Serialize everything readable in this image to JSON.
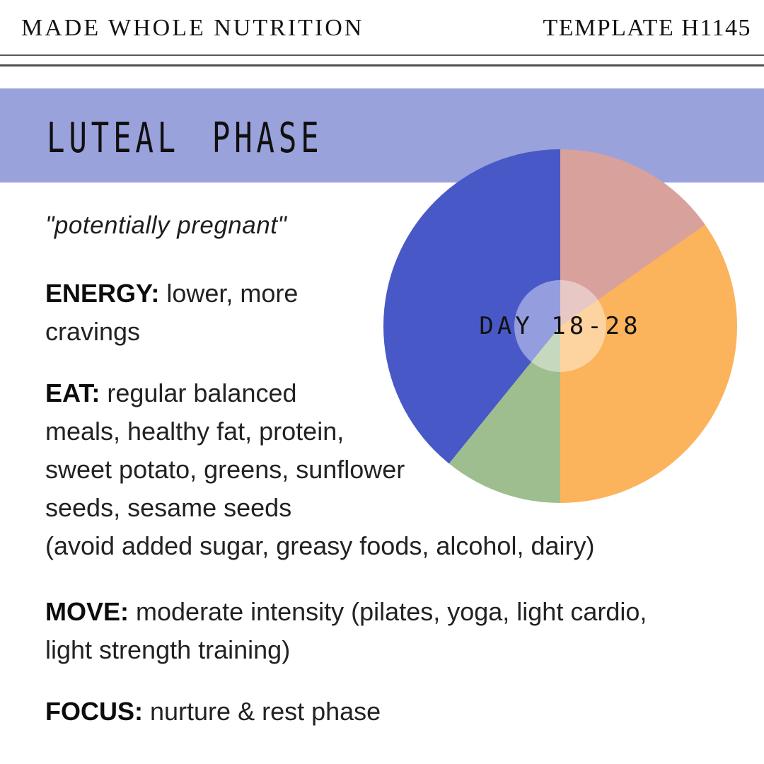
{
  "header": {
    "brand": "MADE WHOLE NUTRITION",
    "template_code": "TEMPLATE H1145"
  },
  "banner": {
    "title": "LUTEAL PHASE",
    "color": "#9aa2dc"
  },
  "chart_data": {
    "type": "pie",
    "title": "menstrual cycle phases pie",
    "center_label": "DAY 18-28",
    "total_days": 28,
    "legend": "none",
    "center_overlay_color": "rgba(255,255,255,0.42)",
    "segments": [
      {
        "label": "rose",
        "color": "#d8a19c",
        "start_deg": 0,
        "end_deg": 55,
        "days": 4.3
      },
      {
        "label": "orange",
        "color": "#fbb35c",
        "start_deg": 55,
        "end_deg": 180,
        "days": 9.7
      },
      {
        "label": "green",
        "color": "#9ebe8f",
        "start_deg": 180,
        "end_deg": 219,
        "days": 3.0
      },
      {
        "label": "blue-luteal",
        "color": "#4859c7",
        "start_deg": 219,
        "end_deg": 360,
        "days": 11.0
      }
    ]
  },
  "sections": {
    "quote": "\"potentially pregnant\"",
    "energy": {
      "label": "ENERGY:",
      "line1": "lower, more",
      "line2": "cravings"
    },
    "eat": {
      "label": "EAT:",
      "line1": "regular balanced",
      "line2": "meals, healthy fat, protein,",
      "line3": "sweet potato, greens, sunflower",
      "line4": "seeds, sesame seeds",
      "line5": "(avoid added sugar, greasy foods, alcohol, dairy)"
    },
    "move": {
      "label": "MOVE:",
      "line1": "moderate intensity (pilates, yoga, light cardio,",
      "line2": "light strength training)"
    },
    "focus": {
      "label": "FOCUS:",
      "line1": "nurture & rest phase"
    }
  }
}
